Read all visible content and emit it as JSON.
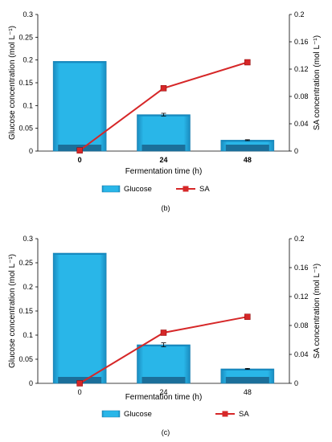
{
  "chart_data": [
    {
      "panel": "b",
      "type": "bar",
      "categories": [
        "0",
        "24",
        "48"
      ],
      "xlabel": "Fermentation time (h)",
      "ylabel": "Glucose concentration (mol L⁻¹)",
      "y2label": "SA concentration (mol L⁻¹)",
      "ylim": [
        0,
        0.3
      ],
      "yticks": [
        "0",
        "0.05",
        "0.1",
        "0.15",
        "0.2",
        "0.25",
        "0.3"
      ],
      "y2lim": [
        0,
        0.2
      ],
      "y2ticks": [
        "0",
        "0.04",
        "0.08",
        "0.12",
        "0.16",
        "0.2"
      ],
      "series": [
        {
          "name": "Glucose",
          "type": "bar",
          "axis": "left",
          "values": [
            0.197,
            0.08,
            0.024
          ],
          "errors": [
            0.0,
            0.003,
            0.001
          ],
          "color": "#29b6e8"
        },
        {
          "name": "SA",
          "type": "line",
          "axis": "right",
          "values": [
            0.001,
            0.092,
            0.13
          ],
          "color": "#d62728"
        }
      ],
      "caption": "(b)"
    },
    {
      "panel": "c",
      "type": "bar",
      "categories": [
        "0",
        "24",
        "48"
      ],
      "xlabel": "Fermentation time (h)",
      "ylabel": "Glucose concentration (mol L⁻¹)",
      "y2label": "SA concentration (mol L⁻¹)",
      "ylim": [
        0,
        0.3
      ],
      "yticks": [
        "0",
        "0.05",
        "0.1",
        "0.15",
        "0.2",
        "0.25",
        "0.3"
      ],
      "y2lim": [
        0,
        0.2
      ],
      "y2ticks": [
        "0",
        "0.04",
        "0.08",
        "0.12",
        "0.16",
        "0.2"
      ],
      "series": [
        {
          "name": "Glucose",
          "type": "bar",
          "axis": "left",
          "values": [
            0.27,
            0.08,
            0.03
          ],
          "errors": [
            0.0,
            0.004,
            0.001
          ],
          "color": "#29b6e8"
        },
        {
          "name": "SA",
          "type": "line",
          "axis": "right",
          "values": [
            0.0,
            0.07,
            0.092
          ],
          "color": "#d62728"
        }
      ],
      "caption": "(c)"
    }
  ]
}
